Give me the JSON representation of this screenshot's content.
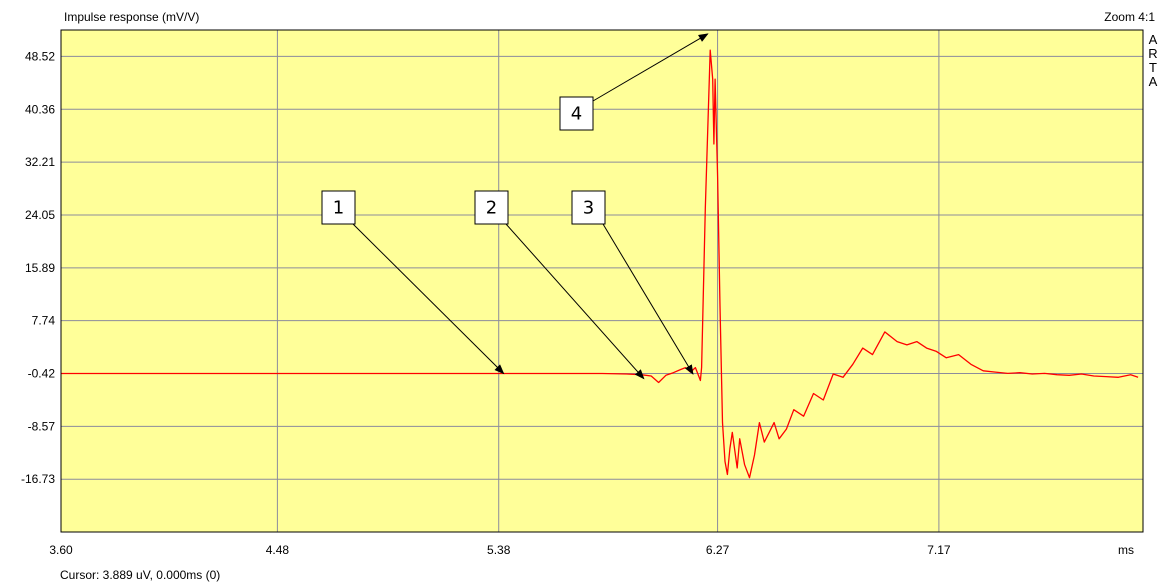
{
  "header": {
    "title": "Impulse response (mV/V)",
    "zoom": "Zoom 4:1",
    "brand_letters": [
      "A",
      "R",
      "T",
      "A"
    ]
  },
  "footer": {
    "cursor": "Cursor: 3.889 uV, 0.000ms (0)",
    "x_unit": "ms"
  },
  "colors": {
    "plot_bg": "#ffff99",
    "grid": "#8c8c9c",
    "trace": "#ff0000",
    "annotation": "#000000",
    "label_box": "#ffffff"
  },
  "chart_data": {
    "type": "line",
    "title": "Impulse response (mV/V)",
    "xlabel": "ms",
    "ylabel": "",
    "xlim": [
      3.6,
      8.0
    ],
    "ylim": [
      -24.88,
      52.6
    ],
    "grid": true,
    "x_ticks": [
      "3.60",
      "4.48",
      "5.38",
      "6.27",
      "7.17"
    ],
    "x_tick_values": [
      3.6,
      4.48,
      5.38,
      6.27,
      7.17
    ],
    "y_ticks": [
      "48.52",
      "40.36",
      "32.21",
      "24.05",
      "15.89",
      "7.74",
      "-0.42",
      "-8.57",
      "-16.73"
    ],
    "y_tick_values": [
      48.52,
      40.36,
      32.21,
      24.05,
      15.89,
      7.74,
      -0.42,
      -8.57,
      -16.73
    ],
    "series": [
      {
        "x": [
          3.6,
          5.4,
          5.8,
          5.9,
          5.96,
          6.0,
          6.03,
          6.06,
          6.09,
          6.12,
          6.14,
          6.16,
          6.18,
          6.19,
          6.2,
          6.205,
          6.22,
          6.24,
          6.25,
          6.255,
          6.26,
          6.27,
          6.28,
          6.29,
          6.3,
          6.31,
          6.32,
          6.33,
          6.35,
          6.36,
          6.38,
          6.4,
          6.42,
          6.44,
          6.46,
          6.48,
          6.5,
          6.52,
          6.55,
          6.58,
          6.62,
          6.66,
          6.7,
          6.74,
          6.78,
          6.82,
          6.86,
          6.9,
          6.95,
          7.0,
          7.04,
          7.08,
          7.12,
          7.16,
          7.2,
          7.25,
          7.3,
          7.35,
          7.4,
          7.45,
          7.5,
          7.55,
          7.6,
          7.65,
          7.7,
          7.75,
          7.8,
          7.85,
          7.9,
          7.95,
          7.98
        ],
        "y": [
          -0.42,
          -0.42,
          -0.42,
          -0.5,
          -0.6,
          -0.8,
          -1.8,
          -0.7,
          -0.3,
          0.2,
          0.5,
          -0.2,
          0.5,
          -0.5,
          -1.5,
          0.5,
          25.0,
          49.5,
          45.0,
          35.0,
          45.0,
          30.0,
          10.0,
          -8.0,
          -14.0,
          -16.0,
          -12.0,
          -9.5,
          -15.0,
          -10.5,
          -14.5,
          -16.5,
          -13.0,
          -8.0,
          -11.0,
          -9.5,
          -8.0,
          -10.5,
          -9.0,
          -6.0,
          -7.0,
          -3.5,
          -4.5,
          -0.5,
          -1.0,
          1.0,
          3.5,
          2.5,
          6.0,
          4.5,
          4.0,
          4.5,
          3.5,
          3.0,
          2.0,
          2.5,
          1.0,
          0.0,
          -0.2,
          -0.4,
          -0.3,
          -0.5,
          -0.4,
          -0.6,
          -0.7,
          -0.5,
          -0.8,
          -0.9,
          -1.0,
          -0.6,
          -1.0
        ]
      }
    ],
    "annotations": [
      {
        "label": "1",
        "target_x": 5.4,
        "target_y": -0.42
      },
      {
        "label": "2",
        "target_x": 5.97,
        "target_y": -1.2
      },
      {
        "label": "3",
        "target_x": 6.17,
        "target_y": -0.5
      },
      {
        "label": "4",
        "target_x": 6.23,
        "target_y": 52.0
      }
    ]
  }
}
